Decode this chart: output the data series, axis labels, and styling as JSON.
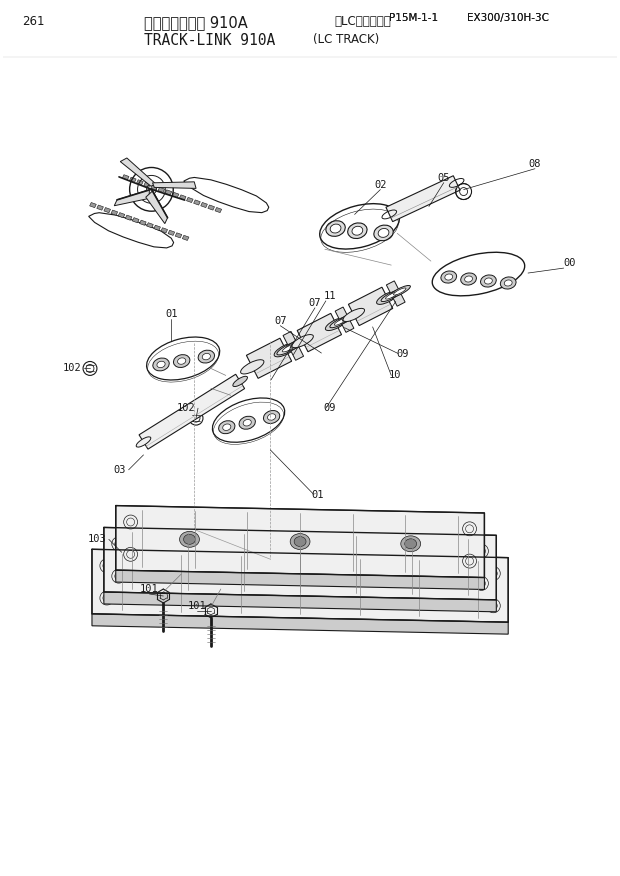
{
  "page_number": "261",
  "title_japanese": "トラックリンク 910A",
  "title_japanese_sub": "（LCトラック）",
  "title_english": "TRACK-LINK 910A",
  "title_english_sub": "(LC TRACK)",
  "part_number": "P15M-1-1",
  "model": "EX300/310H-3C",
  "bg": "#ffffff",
  "lc": "#1a1a1a",
  "lc_light": "#555555"
}
